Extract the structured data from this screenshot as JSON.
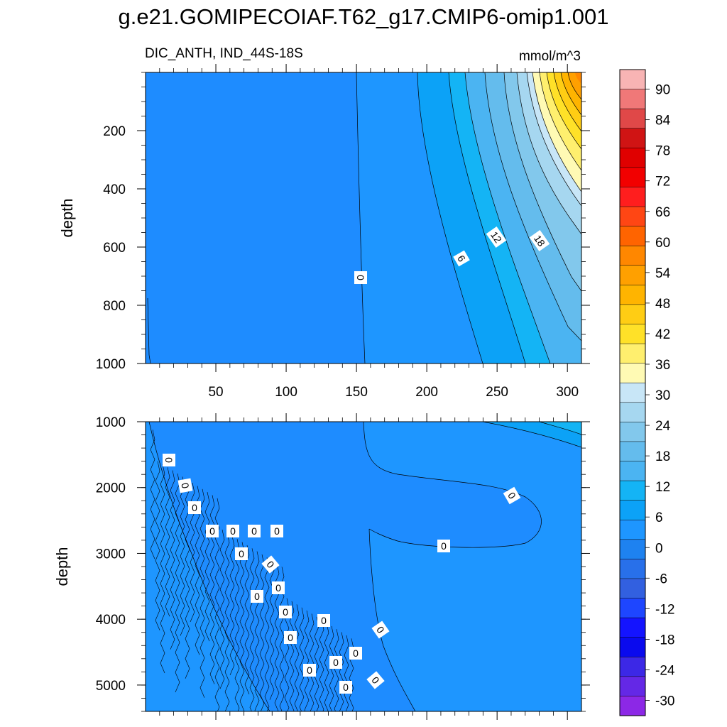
{
  "title": "g.e21.GOMIPECOIAF.T62_g17.CMIP6-omip1.001",
  "chart_data": [
    {
      "type": "contour",
      "panel": "upper",
      "left_string": "DIC_ANTH, IND_44S-18S",
      "right_string": "mmol/m^3",
      "ylabel": "depth",
      "xlabel": "",
      "xlim": [
        0,
        310
      ],
      "ylim": [
        1000,
        0
      ],
      "y_reversed": true,
      "x_ticks": [
        "50",
        "100",
        "150",
        "200",
        "250",
        "300"
      ],
      "y_ticks": [
        "200",
        "400",
        "600",
        "800",
        "1000"
      ],
      "contour_labels": [
        "0",
        "6",
        "12",
        "18"
      ],
      "x_ticks_labeled": true
    },
    {
      "type": "contour",
      "panel": "lower",
      "ylabel": "depth",
      "xlabel": "",
      "xlim": [
        0,
        310
      ],
      "ylim": [
        5400,
        1000
      ],
      "y_reversed": true,
      "y_ticks": [
        "1000",
        "2000",
        "3000",
        "4000",
        "5000"
      ],
      "contour_labels": [
        "0",
        "0",
        "0",
        "0",
        "0",
        "0",
        "0",
        "0",
        "0",
        "0",
        "0",
        "0",
        "0",
        "0",
        "0",
        "0",
        "0",
        "0",
        "0",
        "0",
        "0",
        "0"
      ],
      "x_ticks_labeled": false
    }
  ],
  "colorbar": {
    "levels": [
      "90",
      "84",
      "78",
      "72",
      "66",
      "60",
      "54",
      "48",
      "42",
      "36",
      "30",
      "24",
      "18",
      "12",
      "6",
      "0",
      "-6",
      "-12",
      "-18",
      "-24",
      "-30"
    ],
    "colors": [
      "#f8b4b4",
      "#f07878",
      "#e04848",
      "#d01414",
      "#e00000",
      "#f20000",
      "#ff1e1e",
      "#ff4614",
      "#ff6400",
      "#ff8700",
      "#ffa000",
      "#ffb400",
      "#ffcd14",
      "#ffe128",
      "#ffef6e",
      "#fffab4",
      "#c8e6f7",
      "#a6d7f0",
      "#82c8ec",
      "#64bced",
      "#4bb4f2",
      "#14b4f5",
      "#0ca2f7",
      "#1e96ff",
      "#1e82f0",
      "#2870ea",
      "#3260e0",
      "#1e46ff",
      "#1414ff",
      "#0a0aee",
      "#3c28e6",
      "#6428e6",
      "#8c28e6"
    ]
  }
}
